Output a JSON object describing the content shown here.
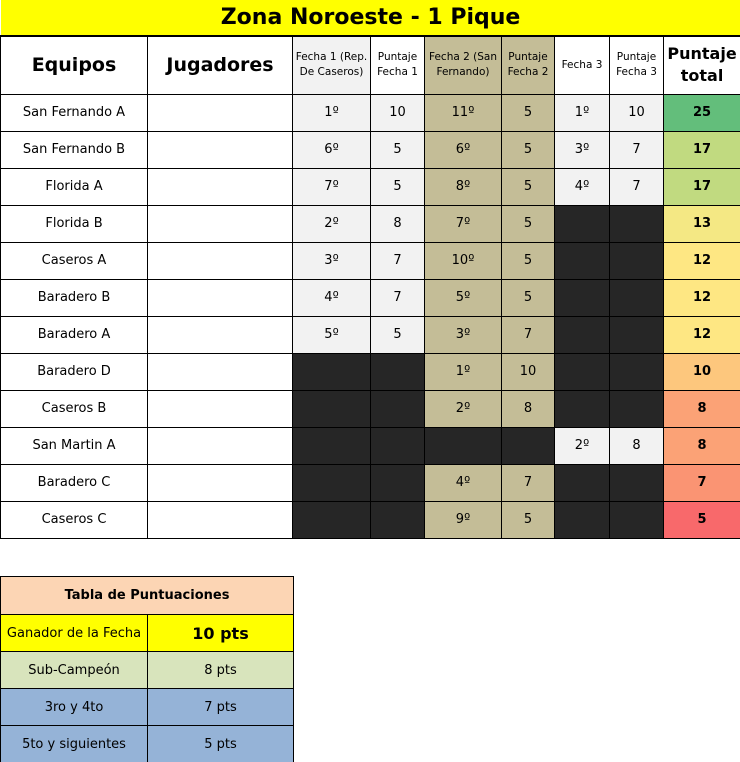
{
  "title": "Zona Noroeste - 1 Pique",
  "headers": {
    "equipos": "Equipos",
    "jugadores": "Jugadores",
    "fecha1": "Fecha 1 (Rep. De Caseros)",
    "puntaje1": "Puntaje Fecha 1",
    "fecha2": "Fecha 2 (San Fernando)",
    "puntaje2": "Puntaje Fecha 2",
    "fecha3": "Fecha 3",
    "puntaje3": "Puntaje Fecha 3",
    "total": "Puntaje total"
  },
  "rows": [
    {
      "team": "San Fernando A",
      "players": "",
      "f1": "1º",
      "p1": "10",
      "f2": "11º",
      "p2": "5",
      "f3": "1º",
      "p3": "10",
      "total": "25",
      "color": "#63be7b"
    },
    {
      "team": "San Fernando B",
      "players": "",
      "f1": "6º",
      "p1": "5",
      "f2": "6º",
      "p2": "5",
      "f3": "3º",
      "p3": "7",
      "total": "17",
      "color": "#c1da80"
    },
    {
      "team": "Florida A",
      "players": "",
      "f1": "7º",
      "p1": "5",
      "f2": "8º",
      "p2": "5",
      "f3": "4º",
      "p3": "7",
      "total": "17",
      "color": "#c1da80"
    },
    {
      "team": "Florida B",
      "players": "",
      "f1": "2º",
      "p1": "8",
      "f2": "7º",
      "p2": "5",
      "f3": null,
      "p3": null,
      "total": "13",
      "color": "#f4e884"
    },
    {
      "team": "Caseros A",
      "players": "",
      "f1": "3º",
      "p1": "7",
      "f2": "10º",
      "p2": "5",
      "f3": null,
      "p3": null,
      "total": "12",
      "color": "#fee783"
    },
    {
      "team": "Baradero B",
      "players": "",
      "f1": "4º",
      "p1": "7",
      "f2": "5º",
      "p2": "5",
      "f3": null,
      "p3": null,
      "total": "12",
      "color": "#fee783"
    },
    {
      "team": "Baradero A",
      "players": "",
      "f1": "5º",
      "p1": "5",
      "f2": "3º",
      "p2": "7",
      "f3": null,
      "p3": null,
      "total": "12",
      "color": "#fee783"
    },
    {
      "team": "Baradero D",
      "players": "",
      "f1": null,
      "p1": null,
      "f2": "1º",
      "p2": "10",
      "f3": null,
      "p3": null,
      "total": "10",
      "color": "#fdc77d"
    },
    {
      "team": "Caseros B",
      "players": "",
      "f1": null,
      "p1": null,
      "f2": "2º",
      "p2": "8",
      "f3": null,
      "p3": null,
      "total": "8",
      "color": "#fba276"
    },
    {
      "team": "San Martin A",
      "players": "",
      "f1": null,
      "p1": null,
      "f2": null,
      "p2": null,
      "f3": "2º",
      "p3": "8",
      "total": "8",
      "color": "#fba276"
    },
    {
      "team": "Baradero C",
      "players": "",
      "f1": null,
      "p1": null,
      "f2": "4º",
      "p2": "7",
      "f3": null,
      "p3": null,
      "total": "7",
      "color": "#fa9473"
    },
    {
      "team": "Caseros C",
      "players": "",
      "f1": null,
      "p1": null,
      "f2": "9º",
      "p2": "5",
      "f3": null,
      "p3": null,
      "total": "5",
      "color": "#f8696b"
    }
  ],
  "points_table": {
    "title": "Tabla de Puntuaciones",
    "rows": [
      {
        "label": "Ganador de la Fecha",
        "value": "10 pts"
      },
      {
        "label": "Sub-Campeón",
        "value": "8 pts"
      },
      {
        "label": "3ro y 4to",
        "value": "7 pts"
      },
      {
        "label": "5to y siguientes",
        "value": "5 pts"
      }
    ]
  }
}
